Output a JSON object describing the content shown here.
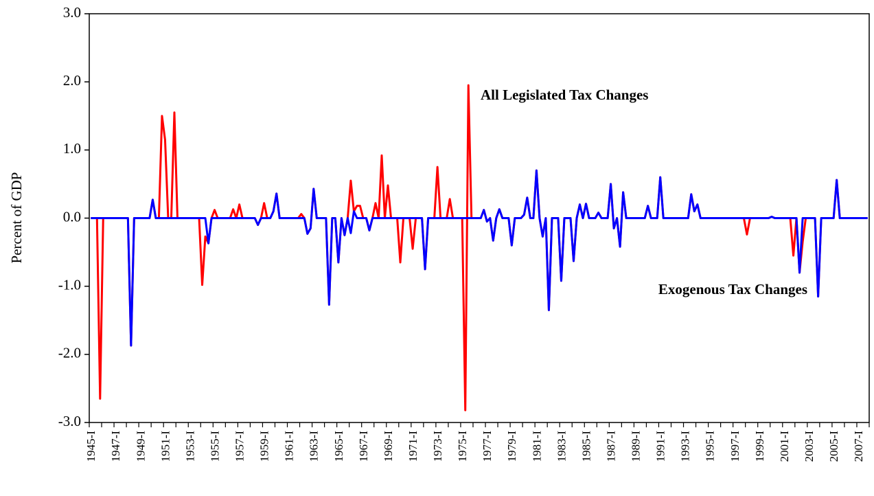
{
  "chart_data": {
    "type": "line",
    "y_label": "Percent of GDP",
    "categories": [
      "1945-I",
      null,
      null,
      null,
      null,
      null,
      null,
      null,
      "1947-I",
      null,
      null,
      null,
      null,
      null,
      null,
      null,
      "1949-I",
      null,
      null,
      null,
      null,
      null,
      null,
      null,
      "1951-I",
      null,
      null,
      null,
      null,
      null,
      null,
      null,
      "1953-I",
      null,
      null,
      null,
      null,
      null,
      null,
      null,
      "1955-I",
      null,
      null,
      null,
      null,
      null,
      null,
      null,
      "1957-I",
      null,
      null,
      null,
      null,
      null,
      null,
      null,
      "1959-I",
      null,
      null,
      null,
      null,
      null,
      null,
      null,
      "1961-I",
      null,
      null,
      null,
      null,
      null,
      null,
      null,
      "1963-I",
      null,
      null,
      null,
      null,
      null,
      null,
      null,
      "1965-I",
      null,
      null,
      null,
      null,
      null,
      null,
      null,
      "1967-I",
      null,
      null,
      null,
      null,
      null,
      null,
      null,
      "1969-I",
      null,
      null,
      null,
      null,
      null,
      null,
      null,
      "1971-I",
      null,
      null,
      null,
      null,
      null,
      null,
      null,
      "1973-I",
      null,
      null,
      null,
      null,
      null,
      null,
      null,
      "1975-I",
      null,
      null,
      null,
      null,
      null,
      null,
      null,
      "1977-I",
      null,
      null,
      null,
      null,
      null,
      null,
      null,
      "1979-I",
      null,
      null,
      null,
      null,
      null,
      null,
      null,
      "1981-I",
      null,
      null,
      null,
      null,
      null,
      null,
      null,
      "1983-I",
      null,
      null,
      null,
      null,
      null,
      null,
      null,
      "1985-I",
      null,
      null,
      null,
      null,
      null,
      null,
      null,
      "1987-I",
      null,
      null,
      null,
      null,
      null,
      null,
      null,
      "1989-I",
      null,
      null,
      null,
      null,
      null,
      null,
      null,
      "1991-I",
      null,
      null,
      null,
      null,
      null,
      null,
      null,
      "1993-I",
      null,
      null,
      null,
      null,
      null,
      null,
      null,
      "1995-I",
      null,
      null,
      null,
      null,
      null,
      null,
      null,
      "1997-I",
      null,
      null,
      null,
      null,
      null,
      null,
      null,
      "1999-I",
      null,
      null,
      null,
      null,
      null,
      null,
      null,
      "2001-I",
      null,
      null,
      null,
      null,
      null,
      null,
      null,
      "2003-I",
      null,
      null,
      null,
      null,
      null,
      null,
      null,
      "2005-I",
      null,
      null,
      null,
      null,
      null,
      null,
      null,
      "2007-I",
      null,
      null,
      null
    ],
    "series": [
      {
        "name": "All Legislated Tax Changes",
        "color": "#ff0000",
        "values": [
          0,
          0,
          0,
          -2.65,
          0,
          0,
          0,
          0,
          0,
          0,
          0,
          0,
          0,
          -1.87,
          0,
          0,
          0,
          0,
          0,
          0,
          0.27,
          0,
          0,
          1.5,
          1.15,
          0,
          0,
          1.55,
          0,
          0,
          0,
          0,
          0,
          0,
          0,
          0,
          -0.98,
          -0.27,
          -0.37,
          0,
          0.12,
          0,
          0,
          0,
          0,
          0,
          0.13,
          0,
          0.2,
          0,
          0,
          0,
          0,
          0,
          -0.1,
          0,
          0.22,
          0,
          0,
          0.1,
          0.36,
          0,
          0,
          0,
          0,
          0,
          0,
          0,
          0.06,
          0,
          -0.23,
          -0.15,
          0.43,
          0,
          0,
          0,
          0,
          -1.27,
          0,
          0,
          -0.65,
          0,
          -0.25,
          0,
          0.55,
          0.1,
          0.18,
          0.18,
          0,
          0,
          -0.18,
          0,
          0.22,
          0,
          0.92,
          0,
          0.48,
          0,
          0,
          0,
          -0.65,
          0,
          0,
          0,
          -0.45,
          0,
          0,
          0,
          -0.75,
          0,
          0,
          0,
          0.75,
          0,
          0,
          0,
          0.28,
          0,
          0,
          0,
          0,
          -2.82,
          1.95,
          0,
          0,
          0,
          0,
          0.12,
          -0.05,
          0,
          -0.33,
          0,
          0.13,
          0,
          0,
          0,
          -0.4,
          0,
          0,
          0,
          0.05,
          0.3,
          0,
          0,
          0.7,
          0,
          -0.27,
          0,
          -1.35,
          0,
          0,
          0,
          -0.92,
          0,
          0,
          0,
          -0.63,
          0,
          0.2,
          0,
          0.21,
          0,
          0,
          0,
          0.08,
          0,
          0,
          0,
          0.5,
          -0.15,
          0,
          -0.42,
          0.38,
          0,
          0,
          0,
          0,
          0,
          0,
          0,
          0.18,
          0,
          0,
          0,
          0.6,
          0,
          0,
          0,
          0,
          0,
          0,
          0,
          0,
          0,
          0.35,
          0.1,
          0.2,
          0,
          0,
          0,
          0,
          0,
          0,
          0,
          0,
          0,
          0,
          0,
          0,
          0,
          0,
          0,
          -0.24,
          0,
          0,
          0,
          0,
          0,
          0,
          0,
          0.02,
          0,
          0,
          0,
          0,
          0,
          0,
          -0.55,
          0,
          -0.8,
          -0.35,
          0,
          0,
          0,
          0,
          -1.15,
          0,
          0,
          0,
          0,
          0,
          0.56,
          0,
          0,
          0,
          0,
          0,
          0,
          0,
          0,
          0,
          0
        ]
      },
      {
        "name": "Exogenous Tax Changes",
        "color": "#0000ff",
        "values": [
          0,
          0,
          0,
          0,
          0,
          0,
          0,
          0,
          0,
          0,
          0,
          0,
          0,
          -1.87,
          0,
          0,
          0,
          0,
          0,
          0,
          0.27,
          0,
          0,
          0,
          0,
          0,
          0,
          0,
          0,
          0,
          0,
          0,
          0,
          0,
          0,
          0,
          0,
          0,
          -0.37,
          0,
          0,
          0,
          0,
          0,
          0,
          0,
          0,
          0,
          0,
          0,
          0,
          0,
          0,
          0,
          -0.1,
          0,
          0,
          0,
          0,
          0.1,
          0.36,
          0,
          0,
          0,
          0,
          0,
          0,
          0,
          0,
          0,
          -0.23,
          -0.15,
          0.43,
          0,
          0,
          0,
          0,
          -1.27,
          0,
          0,
          -0.65,
          0,
          -0.25,
          0,
          -0.22,
          0.1,
          0,
          0,
          0,
          0,
          -0.18,
          0,
          0,
          0,
          0,
          0,
          0,
          0,
          0,
          0,
          0,
          0,
          0,
          0,
          0,
          0,
          0,
          0,
          -0.75,
          0,
          0,
          0,
          0,
          0,
          0,
          0,
          0,
          0,
          0,
          0,
          0,
          0,
          0,
          0,
          0,
          0,
          0,
          0.12,
          -0.05,
          0,
          -0.33,
          0,
          0.13,
          0,
          0,
          0,
          -0.4,
          0,
          0,
          0,
          0.05,
          0.3,
          0,
          0,
          0.7,
          0,
          -0.27,
          0,
          -1.35,
          0,
          0,
          0,
          -0.92,
          0,
          0,
          0,
          -0.63,
          0,
          0.2,
          0,
          0.21,
          0,
          0,
          0,
          0.08,
          0,
          0,
          0,
          0.5,
          -0.15,
          0,
          -0.42,
          0.38,
          0,
          0,
          0,
          0,
          0,
          0,
          0,
          0.18,
          0,
          0,
          0,
          0.6,
          0,
          0,
          0,
          0,
          0,
          0,
          0,
          0,
          0,
          0.35,
          0.1,
          0.2,
          0,
          0,
          0,
          0,
          0,
          0,
          0,
          0,
          0,
          0,
          0,
          0,
          0,
          0,
          0,
          0,
          0,
          0,
          0,
          0,
          0,
          0,
          0,
          0.02,
          0,
          0,
          0,
          0,
          0,
          0,
          0,
          0,
          -0.8,
          0,
          0,
          0,
          0,
          0,
          -1.15,
          0,
          0,
          0,
          0,
          0,
          0.56,
          0,
          0,
          0,
          0,
          0,
          0,
          0,
          0,
          0,
          0
        ]
      }
    ],
    "ylim": [
      -3,
      3
    ],
    "yticks": [
      {
        "value": -3,
        "label": "-3.0"
      },
      {
        "value": -2,
        "label": "-2.0"
      },
      {
        "value": -1,
        "label": "-1.0"
      },
      {
        "value": 0,
        "label": "0.0"
      },
      {
        "value": 1,
        "label": "1.0"
      },
      {
        "value": 2,
        "label": "2.0"
      },
      {
        "value": 3,
        "label": "3.0"
      }
    ],
    "grid": false
  }
}
